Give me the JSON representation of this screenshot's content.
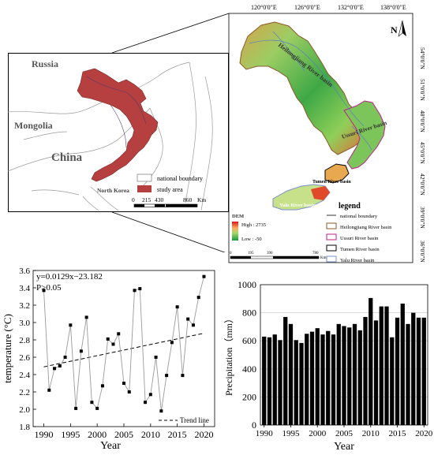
{
  "overview_map": {
    "countries": {
      "russia": "Russia",
      "mongolia": "Mongolia",
      "china": "China",
      "north_korea": "North Korea"
    },
    "legend": {
      "national_boundary": "national boundary",
      "study_area": "study area"
    },
    "scale": {
      "ticks": [
        "0",
        "215",
        "430",
        "860"
      ],
      "unit": "Km"
    },
    "colors": {
      "study_area": "#b5403f",
      "boundary": "#999999"
    }
  },
  "detail_map": {
    "lon_labels": [
      "120°0'0\"E",
      "126°0'0\"E",
      "132°0'0\"E",
      "138°0'0\"E"
    ],
    "lat_labels": [
      "54°0'0\"N",
      "51°0'0\"N",
      "48°0'0\"N",
      "45°0'0\"N",
      "42°0'0\"N",
      "39°0'0\"N",
      "36°0'0\"N"
    ],
    "north": "N",
    "basins": {
      "heilongjiang": "Heilongjiang River basin",
      "ussuri": "Ussuri River basin",
      "tumen": "Tumen River basin",
      "yalu": "Yalu River basin"
    },
    "dem": {
      "title": "DEM",
      "high": "High : 2735",
      "low": "Low : -50"
    },
    "legend": {
      "title": "legend",
      "items": [
        "national boundary",
        "Heilongjiang River basin",
        "Ussuri River basin",
        "Tumen River basin",
        "Yalu River basin"
      ],
      "colors": [
        "#999999",
        "#8b5a2b",
        "#c0208a",
        "#000000",
        "#7b8fd0"
      ]
    },
    "scale": {
      "ticks": [
        "0",
        "195",
        "390",
        "780"
      ],
      "unit": "Km"
    }
  },
  "chart_data": [
    {
      "type": "line",
      "xlabel": "Year",
      "ylabel": "temperature (°C)",
      "x": [
        1990,
        1991,
        1992,
        1993,
        1994,
        1995,
        1996,
        1997,
        1998,
        1999,
        2000,
        2001,
        2002,
        2003,
        2004,
        2005,
        2006,
        2007,
        2008,
        2009,
        2010,
        2011,
        2012,
        2013,
        2014,
        2015,
        2016,
        2017,
        2018,
        2019,
        2020
      ],
      "values": [
        3.37,
        2.22,
        2.47,
        2.5,
        2.6,
        2.97,
        2.01,
        2.67,
        3.06,
        2.08,
        2.01,
        2.27,
        2.81,
        2.75,
        2.87,
        2.3,
        2.2,
        3.37,
        3.39,
        2.08,
        2.17,
        2.6,
        1.98,
        2.39,
        2.77,
        3.18,
        2.39,
        3.04,
        2.97,
        3.29,
        3.53
      ],
      "xlim": [
        1988,
        2022
      ],
      "ylim": [
        1.8,
        3.6
      ],
      "xticks": [
        1990,
        1995,
        2000,
        2005,
        2010,
        2015,
        2020
      ],
      "yticks": [
        "1.8",
        "2.0",
        "2.2",
        "2.4",
        "2.6",
        "2.8",
        "3.0",
        "3.2",
        "3.4",
        "3.6"
      ],
      "trend": {
        "equation": "y=0.0129x−23.182",
        "p_text": "P>0.05",
        "slope": 0.0129,
        "intercept": -23.182,
        "label": "Trend line"
      },
      "legend_position": "bottom-right",
      "grid": false
    },
    {
      "type": "bar",
      "xlabel": "Year",
      "ylabel": "Precipitation（mm）",
      "x": [
        1990,
        1991,
        1992,
        1993,
        1994,
        1995,
        1996,
        1997,
        1998,
        1999,
        2000,
        2001,
        2002,
        2003,
        2004,
        2005,
        2006,
        2007,
        2008,
        2009,
        2010,
        2011,
        2012,
        2013,
        2014,
        2015,
        2016,
        2017,
        2018,
        2019,
        2020
      ],
      "values": [
        630,
        625,
        645,
        605,
        770,
        720,
        605,
        585,
        650,
        665,
        690,
        645,
        670,
        645,
        720,
        705,
        695,
        720,
        675,
        770,
        905,
        745,
        845,
        845,
        625,
        765,
        865,
        720,
        800,
        765,
        765
      ],
      "xlim": [
        1989.3,
        2020.7
      ],
      "ylim": [
        0,
        1000
      ],
      "xticks": [
        1990,
        1995,
        2000,
        2005,
        2010,
        2015,
        2020
      ],
      "yticks": [
        "0",
        "200",
        "400",
        "600",
        "800",
        "1000"
      ],
      "grid": true,
      "bar_color": "#000000"
    }
  ]
}
